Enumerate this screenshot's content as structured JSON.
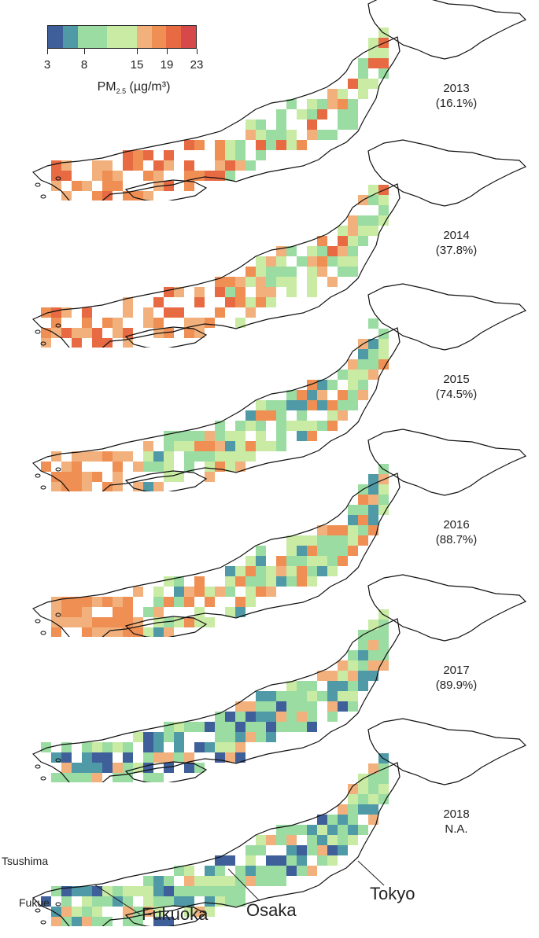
{
  "legend": {
    "colors": [
      "#3f5f9a",
      "#4f9aa6",
      "#9bdca2",
      "#9bdca2",
      "#c9eba4",
      "#c9eba4",
      "#f2b17c",
      "#ef8f54",
      "#e76a43",
      "#d6484a"
    ],
    "ticks": [
      "3",
      "8",
      "15",
      "19",
      "23"
    ],
    "unit_prefix": "PM",
    "unit_sub": "2.5",
    "unit_suffix": " (µg/m³)"
  },
  "panels": [
    {
      "year": "2013",
      "coverage": "(16.1%)",
      "pattern": "high"
    },
    {
      "year": "2014",
      "coverage": "(37.8%)",
      "pattern": "high"
    },
    {
      "year": "2015",
      "coverage": "(74.5%)",
      "pattern": "mid"
    },
    {
      "year": "2016",
      "coverage": "(88.7%)",
      "pattern": "mid"
    },
    {
      "year": "2017",
      "coverage": "(89.9%)",
      "pattern": "low"
    },
    {
      "year": "2018",
      "coverage": "N.A.",
      "pattern": "low"
    }
  ],
  "places": {
    "tsushima": "Tsushima",
    "fukue": "Fukue",
    "fukuoka": "Fukuoka",
    "osaka": "Osaka",
    "tokyo": "Tokyo"
  }
}
